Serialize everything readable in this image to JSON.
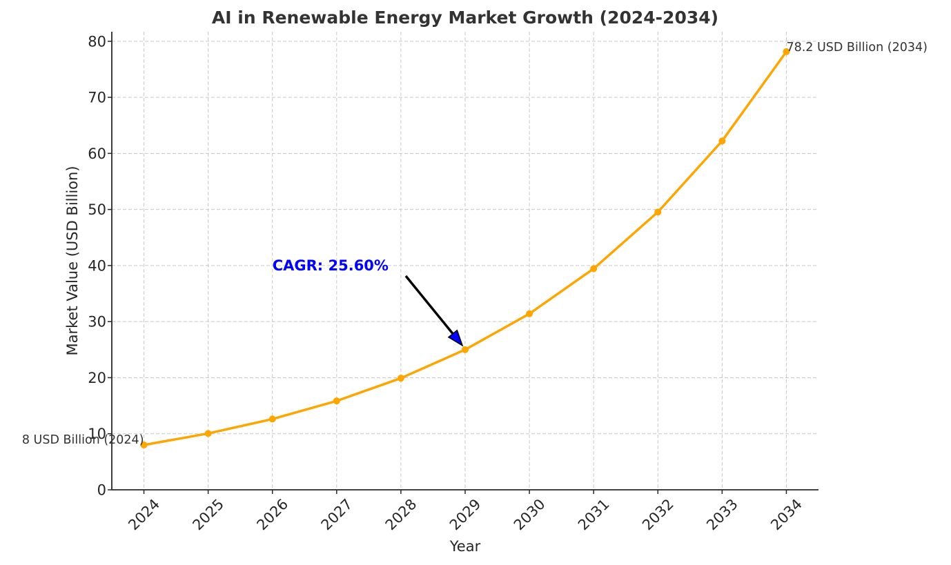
{
  "chart_data": {
    "type": "line",
    "title": "AI in Renewable Energy Market Growth (2024-2034)",
    "xlabel": "Year",
    "ylabel": "Market Value (USD Billion)",
    "x": [
      2024,
      2025,
      2026,
      2027,
      2028,
      2029,
      2030,
      2031,
      2032,
      2033,
      2034
    ],
    "x_tick_labels": [
      "2024",
      "2025",
      "2026",
      "2027",
      "2028",
      "2029",
      "2030",
      "2031",
      "2032",
      "2033",
      "2034"
    ],
    "series": [
      {
        "name": "Market Value",
        "values": [
          8.0,
          10.05,
          12.62,
          15.85,
          19.91,
          25.0,
          31.4,
          39.44,
          49.54,
          62.22,
          78.15
        ],
        "color": "#FFA500",
        "marker": "circle"
      }
    ],
    "y_ticks": [
      0,
      10,
      20,
      30,
      40,
      50,
      60,
      70,
      80
    ],
    "y_tick_labels": [
      "0",
      "10",
      "20",
      "30",
      "40",
      "50",
      "60",
      "70",
      "80"
    ],
    "ylim": [
      0,
      81.7
    ],
    "xlim": [
      2023.5,
      2034.5
    ],
    "grid": true,
    "x_tick_rotation_deg": 45,
    "annotations": [
      {
        "text": "8 USD Billion (2024)",
        "x": 2024,
        "y": 8.0,
        "anchor": "left-of-point",
        "color": "#333333"
      },
      {
        "text": "78.2 USD Billion (2034)",
        "x": 2034,
        "y": 78.15,
        "anchor": "right-of-point",
        "color": "#333333"
      },
      {
        "text": "CAGR: 25.60%",
        "text_x": 2026,
        "text_y": 40,
        "arrow_to_x": 2029,
        "arrow_to_y": 25.0,
        "color": "#0000FF",
        "arrow_face_color": "#0000FF"
      }
    ]
  }
}
